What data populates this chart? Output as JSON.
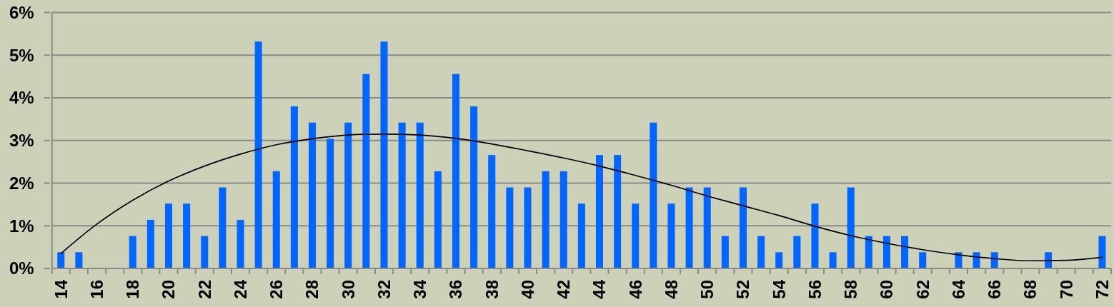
{
  "chart_data": {
    "type": "bar",
    "x": [
      14,
      15,
      16,
      17,
      18,
      19,
      20,
      21,
      22,
      23,
      24,
      25,
      26,
      27,
      28,
      29,
      30,
      31,
      32,
      33,
      34,
      35,
      36,
      37,
      38,
      39,
      40,
      41,
      42,
      43,
      44,
      45,
      46,
      47,
      48,
      49,
      50,
      51,
      52,
      53,
      54,
      55,
      56,
      57,
      58,
      59,
      60,
      61,
      62,
      63,
      64,
      65,
      66,
      67,
      68,
      69,
      70,
      71,
      72
    ],
    "xlim": [
      13.5,
      72.5
    ],
    "xticks": [
      {
        "value": 13.5,
        "label": null
      },
      14,
      {
        "value": 14.5,
        "label": null
      },
      {
        "value": 15.5,
        "label": null
      },
      16,
      {
        "value": 16.5,
        "label": null
      },
      {
        "value": 17.5,
        "label": null
      },
      18,
      {
        "value": 18.5,
        "label": null
      },
      {
        "value": 19.5,
        "label": null
      },
      20,
      {
        "value": 20.5,
        "label": null
      },
      {
        "value": 21.5,
        "label": null
      },
      22,
      {
        "value": 22.5,
        "label": null
      },
      {
        "value": 23.5,
        "label": null
      },
      24,
      {
        "value": 24.5,
        "label": null
      },
      {
        "value": 25.5,
        "label": null
      },
      26,
      {
        "value": 26.5,
        "label": null
      },
      {
        "value": 27.5,
        "label": null
      },
      28,
      {
        "value": 28.5,
        "label": null
      },
      {
        "value": 29.5,
        "label": null
      },
      30,
      {
        "value": 30.5,
        "label": null
      },
      {
        "value": 31.5,
        "label": null
      },
      32,
      {
        "value": 32.5,
        "label": null
      },
      {
        "value": 33.5,
        "label": null
      },
      34,
      {
        "value": 34.5,
        "label": null
      },
      {
        "value": 35.5,
        "label": null
      },
      36,
      {
        "value": 36.5,
        "label": null
      },
      {
        "value": 37.5,
        "label": null
      },
      38,
      {
        "value": 38.5,
        "label": null
      },
      {
        "value": 39.5,
        "label": null
      },
      40,
      {
        "value": 40.5,
        "label": null
      },
      {
        "value": 41.5,
        "label": null
      },
      42,
      {
        "value": 42.5,
        "label": null
      },
      {
        "value": 43.5,
        "label": null
      },
      44,
      {
        "value": 44.5,
        "label": null
      },
      {
        "value": 45.5,
        "label": null
      },
      46,
      {
        "value": 46.5,
        "label": null
      },
      {
        "value": 47.5,
        "label": null
      },
      48,
      {
        "value": 48.5,
        "label": null
      },
      {
        "value": 49.5,
        "label": null
      },
      50,
      {
        "value": 50.5,
        "label": null
      },
      {
        "value": 51.5,
        "label": null
      },
      52,
      {
        "value": 52.5,
        "label": null
      },
      {
        "value": 53.5,
        "label": null
      },
      54,
      {
        "value": 54.5,
        "label": null
      },
      {
        "value": 55.5,
        "label": null
      },
      56,
      {
        "value": 56.5,
        "label": null
      },
      {
        "value": 57.5,
        "label": null
      },
      58,
      {
        "value": 58.5,
        "label": null
      },
      {
        "value": 59.5,
        "label": null
      },
      60,
      {
        "value": 60.5,
        "label": null
      },
      {
        "value": 61.5,
        "label": null
      },
      62,
      {
        "value": 62.5,
        "label": null
      },
      {
        "value": 63.5,
        "label": null
      },
      64,
      {
        "value": 64.5,
        "label": null
      },
      {
        "value": 65.5,
        "label": null
      },
      66,
      {
        "value": 66.5,
        "label": null
      },
      {
        "value": 67.5,
        "label": null
      },
      68,
      {
        "value": 68.5,
        "label": null
      },
      {
        "value": 69.5,
        "label": null
      },
      70,
      {
        "value": 70.5,
        "label": null
      },
      {
        "value": 71.5,
        "label": null
      },
      72,
      {
        "value": 72.5,
        "label": null
      }
    ],
    "ylim": [
      0,
      6
    ],
    "yticks": [
      {
        "value": 0,
        "label": "0%"
      },
      {
        "value": 1,
        "label": "1%"
      },
      {
        "value": 2,
        "label": "2%"
      },
      {
        "value": 3,
        "label": "3%"
      },
      {
        "value": 4,
        "label": "4%"
      },
      {
        "value": 5,
        "label": "5%"
      },
      {
        "value": 6,
        "label": "6%"
      }
    ],
    "grid": "y",
    "series": [
      {
        "color": "#0066ff",
        "values": [
          0.38,
          0.38,
          0,
          0,
          0.76,
          1.14,
          1.52,
          1.52,
          0.76,
          1.9,
          1.14,
          5.32,
          2.28,
          3.8,
          3.42,
          3.04,
          3.42,
          4.56,
          5.32,
          3.42,
          3.42,
          2.28,
          4.56,
          3.8,
          2.66,
          1.9,
          1.9,
          2.28,
          2.28,
          1.52,
          2.66,
          2.66,
          1.52,
          3.42,
          1.52,
          1.9,
          1.9,
          0.76,
          1.9,
          0.76,
          0.38,
          0.76,
          1.52,
          0.38,
          1.9,
          0.76,
          0.76,
          0.76,
          0.38,
          0,
          0.38,
          0.38,
          0.38,
          0,
          0,
          0.38,
          0,
          0,
          0.76
        ]
      },
      {
        "type": "line",
        "color": "#000000",
        "x": [
          14,
          16,
          18,
          20,
          22,
          24,
          26,
          28,
          30,
          32,
          34,
          36,
          38,
          40,
          42,
          44,
          46,
          48,
          50,
          52,
          54,
          56,
          58,
          60,
          62,
          64,
          66,
          68,
          70,
          72
        ],
        "values": [
          0.35,
          1.04,
          1.6,
          2.05,
          2.4,
          2.68,
          2.9,
          3.04,
          3.13,
          3.15,
          3.13,
          3.05,
          2.92,
          2.76,
          2.59,
          2.4,
          2.18,
          1.95,
          1.7,
          1.47,
          1.24,
          0.99,
          0.77,
          0.59,
          0.44,
          0.32,
          0.23,
          0.18,
          0.19,
          0.26
        ]
      }
    ]
  }
}
